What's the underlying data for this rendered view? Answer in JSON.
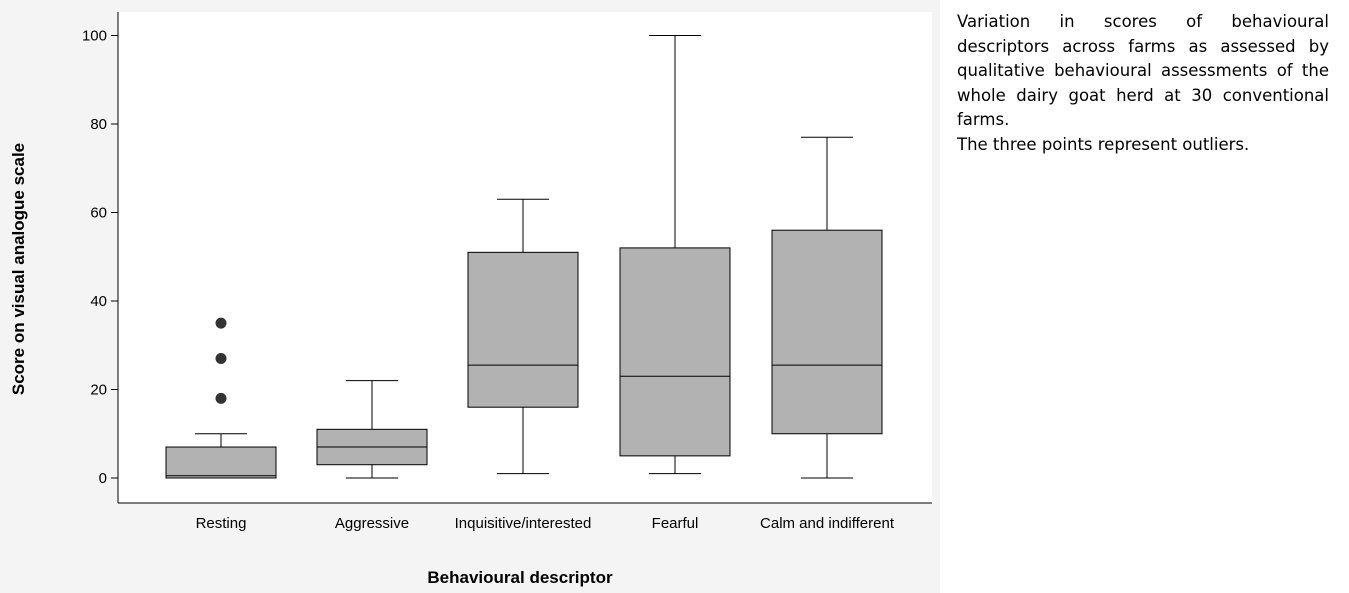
{
  "chart_data": {
    "type": "box",
    "xlabel": "Behavioural descriptor",
    "ylabel": "Score on visual analogue scale",
    "ylim": [
      -5,
      105
    ],
    "yticks": [
      0,
      20,
      40,
      60,
      80,
      100
    ],
    "grid": false,
    "box_color": "#b2b2b2",
    "categories": [
      "Resting",
      "Aggressive",
      "Inquisitive/interested",
      "Fearful",
      "Calm and indifferent"
    ],
    "boxes": [
      {
        "category": "Resting",
        "whisker_low": 0,
        "q1": 0,
        "median": 0.5,
        "q3": 7,
        "whisker_high": 10,
        "outliers": [
          18,
          27,
          35
        ]
      },
      {
        "category": "Aggressive",
        "whisker_low": 0,
        "q1": 3,
        "median": 7,
        "q3": 11,
        "whisker_high": 22,
        "outliers": []
      },
      {
        "category": "Inquisitive/interested",
        "whisker_low": 1,
        "q1": 16,
        "median": 25.5,
        "q3": 51,
        "whisker_high": 63,
        "outliers": []
      },
      {
        "category": "Fearful",
        "whisker_low": 1,
        "q1": 5,
        "median": 23,
        "q3": 52,
        "whisker_high": 100,
        "outliers": []
      },
      {
        "category": "Calm and indifferent",
        "whisker_low": 0,
        "q1": 10,
        "median": 25.5,
        "q3": 56,
        "whisker_high": 77,
        "outliers": []
      }
    ]
  },
  "caption": {
    "text": "Variation in scores of behavioural descriptors across farms as assessed by qualitative behavioural assessments of the whole dairy goat herd at 30 conventional farms.",
    "note": "The three points represent outliers."
  }
}
